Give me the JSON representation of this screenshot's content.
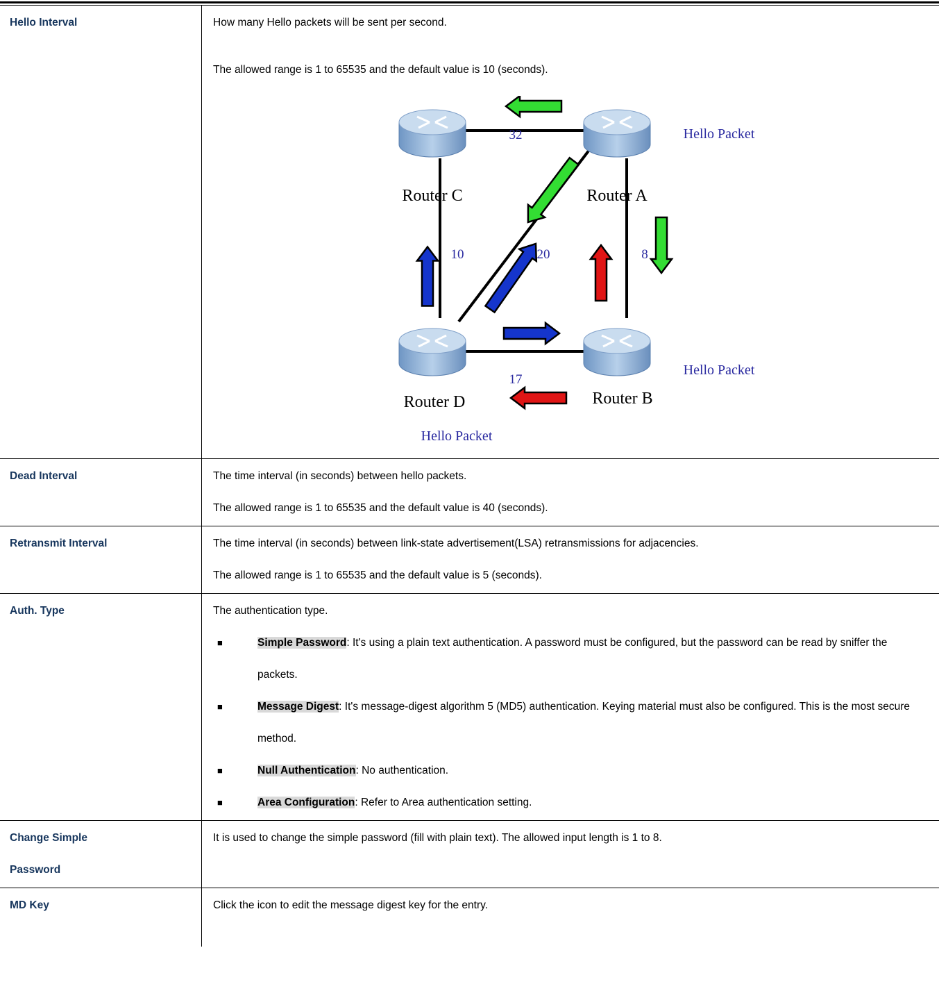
{
  "rows": [
    {
      "term": "Hello Interval",
      "description": [
        "How many Hello packets will be sent per second.",
        "The allowed range is 1 to 65535 and the default value is 10 (seconds)."
      ]
    },
    {
      "term": "Dead Interval",
      "description": [
        "The time interval (in seconds) between hello packets.",
        "The allowed range is 1 to 65535 and the default value is 40 (seconds)."
      ]
    },
    {
      "term": "Retransmit Interval",
      "description": [
        "The time interval (in seconds) between link-state advertisement(LSA) retransmissions for adjacencies.",
        "The allowed range is 1 to 65535 and the default value is 5 (seconds)."
      ]
    },
    {
      "term": "Auth. Type",
      "description": [
        "The authentication type."
      ],
      "items": [
        {
          "label": "Simple Password",
          "text": ": It's using a plain text authentication. A password must be configured, but the password can be read by sniffer the packets."
        },
        {
          "label": "Message Digest",
          "text": ": It's message-digest algorithm 5 (MD5) authentication. Keying material must also be configured. This is the most secure method."
        },
        {
          "label": "Null Authentication",
          "text": ": No authentication."
        },
        {
          "label": "Area Configuration",
          "text": ": Refer to Area authentication setting."
        }
      ]
    },
    {
      "term": "Change Simple Password",
      "description": [
        "It is used to change the simple password (fill with plain text). The allowed input length is 1 to 8."
      ]
    },
    {
      "term": "MD Key",
      "description": [
        "Click the icon to edit the message digest key for the entry."
      ]
    }
  ],
  "diagram": {
    "routers": [
      "Router C",
      "Router A",
      "Router D",
      "Router B"
    ],
    "link_costs": [
      32,
      10,
      20,
      8,
      17
    ],
    "packet_labels": [
      "Hello Packet",
      "Hello Packet",
      "Hello Packet"
    ]
  }
}
